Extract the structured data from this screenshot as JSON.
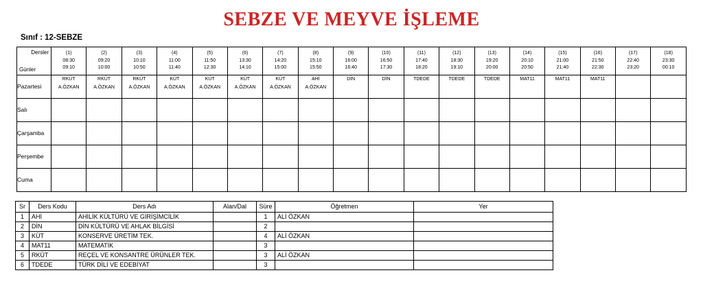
{
  "title": "SEBZE VE MEYVE İŞLEME",
  "title_color": "#cc2424",
  "class_label": "Sınıf : 12-SEBZE",
  "schedule": {
    "corner": {
      "top": "Dersler",
      "bottom": "Günler"
    },
    "periods": [
      {
        "num": "(1)",
        "start": "08:30",
        "end": "09:10"
      },
      {
        "num": "(2)",
        "start": "09:20",
        "end": "10:00"
      },
      {
        "num": "(3)",
        "start": "10:10",
        "end": "10:50"
      },
      {
        "num": "(4)",
        "start": "11:00",
        "end": "11:40"
      },
      {
        "num": "(5)",
        "start": "11:50",
        "end": "12:30"
      },
      {
        "num": "(6)",
        "start": "13:30",
        "end": "14:10"
      },
      {
        "num": "(7)",
        "start": "14:20",
        "end": "15:00"
      },
      {
        "num": "(8)",
        "start": "15:10",
        "end": "15:50"
      },
      {
        "num": "(9)",
        "start": "16:00",
        "end": "16:40"
      },
      {
        "num": "(10)",
        "start": "16:50",
        "end": "17:30"
      },
      {
        "num": "(11)",
        "start": "17:40",
        "end": "18:20"
      },
      {
        "num": "(12)",
        "start": "18:30",
        "end": "19:10"
      },
      {
        "num": "(13)",
        "start": "19:20",
        "end": "20:00"
      },
      {
        "num": "(14)",
        "start": "20:10",
        "end": "20:50"
      },
      {
        "num": "(15)",
        "start": "21:00",
        "end": "21:40"
      },
      {
        "num": "(16)",
        "start": "21:50",
        "end": "22:30"
      },
      {
        "num": "(17)",
        "start": "22:40",
        "end": "23:20"
      },
      {
        "num": "(18)",
        "start": "23:30",
        "end": "00:10"
      }
    ],
    "days": [
      {
        "name": "Pazartesi",
        "cells": [
          [
            "RKÜT",
            "A.ÖZKAN"
          ],
          [
            "RKÜT",
            "A.ÖZKAN"
          ],
          [
            "RKÜT",
            "A.ÖZKAN"
          ],
          [
            "KÜT",
            "A.ÖZKAN"
          ],
          [
            "KÜT",
            "A.ÖZKAN"
          ],
          [
            "KÜT",
            "A.ÖZKAN"
          ],
          [
            "KÜT",
            "A.ÖZKAN"
          ],
          [
            "AHİ",
            "A.ÖZKAN"
          ],
          [
            "DİN"
          ],
          [
            "DİN"
          ],
          [
            "TDEDE"
          ],
          [
            "TDEDE"
          ],
          [
            "TDEDE"
          ],
          [
            "MAT11"
          ],
          [
            "MAT11"
          ],
          [
            "MAT11"
          ],
          [],
          []
        ]
      },
      {
        "name": "Salı",
        "cells": [
          [],
          [],
          [],
          [],
          [],
          [],
          [],
          [],
          [],
          [],
          [],
          [],
          [],
          [],
          [],
          [],
          [],
          []
        ]
      },
      {
        "name": "Çarşamba",
        "cells": [
          [],
          [],
          [],
          [],
          [],
          [],
          [],
          [],
          [],
          [],
          [],
          [],
          [],
          [],
          [],
          [],
          [],
          []
        ]
      },
      {
        "name": "Perşembe",
        "cells": [
          [],
          [],
          [],
          [],
          [],
          [],
          [],
          [],
          [],
          [],
          [],
          [],
          [],
          [],
          [],
          [],
          [],
          []
        ]
      },
      {
        "name": "Cuma",
        "cells": [
          [],
          [],
          [],
          [],
          [],
          [],
          [],
          [],
          [],
          [],
          [],
          [],
          [],
          [],
          [],
          [],
          [],
          []
        ]
      }
    ]
  },
  "course_table": {
    "headers": [
      "Sr",
      "Ders Kodu",
      "Ders Adı",
      "Alan/Dal",
      "Süre",
      "Öğretmen",
      "Yer"
    ],
    "rows": [
      [
        "1",
        "AHİ",
        "AHİLİK KÜLTÜRÜ VE GİRİŞİMCİLİK",
        "",
        "1",
        "ALİ ÖZKAN",
        ""
      ],
      [
        "2",
        "DİN",
        "DİN KÜLTÜRÜ VE AHLAK BİLGİSİ",
        "",
        "2",
        "",
        ""
      ],
      [
        "3",
        "KÜT",
        "KONSERVE ÜRETİM TEK.",
        "",
        "4",
        "ALİ ÖZKAN",
        ""
      ],
      [
        "4",
        "MAT11",
        "MATEMATİK",
        "",
        "3",
        "",
        ""
      ],
      [
        "5",
        "RKÜT",
        "REÇEL VE KONSANTRE ÜRÜNLER TEK.",
        "",
        "3",
        "ALİ ÖZKAN",
        ""
      ],
      [
        "6",
        "TDEDE",
        "TÜRK DİLİ VE EDEBİYAT",
        "",
        "3",
        "",
        ""
      ]
    ]
  }
}
